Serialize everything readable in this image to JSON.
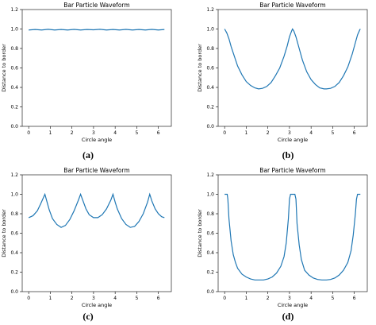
{
  "figure": {
    "captions": [
      "(a)",
      "(b)",
      "(c)",
      "(d)"
    ]
  },
  "chart_data": [
    {
      "type": "line",
      "title": "Bar Particle Waveform",
      "xlabel": "Circle angle",
      "ylabel": "Distance to border",
      "xlim": [
        -0.3,
        6.6
      ],
      "ylim": [
        0,
        1.2
      ],
      "xticks": [
        0,
        1,
        2,
        3,
        4,
        5,
        6
      ],
      "yticks": [
        0.0,
        0.2,
        0.4,
        0.6,
        0.8,
        1.0,
        1.2
      ],
      "ytick_labels": [
        "0.0",
        "0.2",
        "0.4",
        "0.6",
        "0.8",
        "1.0",
        "1.2"
      ],
      "grid": false,
      "color": "#1f77b4",
      "series": [
        {
          "x": [
            0.0,
            0.3,
            0.6,
            0.9,
            1.2,
            1.5,
            1.8,
            2.1,
            2.4,
            2.7,
            3.0,
            3.3,
            3.6,
            3.9,
            4.2,
            4.5,
            4.8,
            5.1,
            5.4,
            5.7,
            6.0,
            6.28
          ],
          "y": [
            0.99,
            0.995,
            0.99,
            0.997,
            0.99,
            0.995,
            0.99,
            0.996,
            0.99,
            0.995,
            0.992,
            0.997,
            0.99,
            0.995,
            0.99,
            0.996,
            0.99,
            0.995,
            0.99,
            0.996,
            0.99,
            0.995
          ]
        }
      ]
    },
    {
      "type": "line",
      "title": "Bar Particle Waveform",
      "xlabel": "Circle angle",
      "ylabel": "Distance to border",
      "xlim": [
        -0.3,
        6.6
      ],
      "ylim": [
        0,
        1.2
      ],
      "xticks": [
        0,
        1,
        2,
        3,
        4,
        5,
        6
      ],
      "yticks": [
        0.0,
        0.2,
        0.4,
        0.6,
        0.8,
        1.0,
        1.2
      ],
      "ytick_labels": [
        "0.0",
        "0.2",
        "0.4",
        "0.6",
        "0.8",
        "1.0",
        "1.2"
      ],
      "grid": false,
      "color": "#1f77b4",
      "series": [
        {
          "x": [
            0.0,
            0.1,
            0.2,
            0.3,
            0.45,
            0.6,
            0.8,
            1.0,
            1.2,
            1.4,
            1.57,
            1.75,
            1.95,
            2.15,
            2.35,
            2.55,
            2.75,
            2.9,
            3.0,
            3.1,
            3.14,
            3.2,
            3.3,
            3.45,
            3.6,
            3.8,
            4.0,
            4.2,
            4.4,
            4.6,
            4.71,
            4.9,
            5.1,
            5.3,
            5.5,
            5.7,
            5.9,
            6.05,
            6.15,
            6.25,
            6.28
          ],
          "y": [
            1.0,
            0.96,
            0.9,
            0.82,
            0.72,
            0.62,
            0.53,
            0.46,
            0.42,
            0.395,
            0.385,
            0.39,
            0.41,
            0.45,
            0.52,
            0.6,
            0.72,
            0.83,
            0.92,
            0.98,
            1.0,
            0.98,
            0.92,
            0.8,
            0.68,
            0.56,
            0.48,
            0.43,
            0.395,
            0.385,
            0.385,
            0.39,
            0.41,
            0.45,
            0.52,
            0.61,
            0.74,
            0.86,
            0.94,
            0.99,
            1.0
          ]
        }
      ]
    },
    {
      "type": "line",
      "title": "Bar Particle Waveform",
      "xlabel": "Circle angle",
      "ylabel": "Distance to border",
      "xlim": [
        -0.3,
        6.6
      ],
      "ylim": [
        0,
        1.2
      ],
      "xticks": [
        0,
        1,
        2,
        3,
        4,
        5,
        6
      ],
      "yticks": [
        0.0,
        0.2,
        0.4,
        0.6,
        0.8,
        1.0,
        1.2
      ],
      "ytick_labels": [
        "0.0",
        "0.2",
        "0.4",
        "0.6",
        "0.8",
        "1.0",
        "1.2"
      ],
      "grid": false,
      "color": "#1f77b4",
      "series": [
        {
          "x": [
            0.0,
            0.2,
            0.4,
            0.55,
            0.65,
            0.75,
            0.85,
            0.95,
            1.1,
            1.3,
            1.5,
            1.7,
            1.9,
            2.1,
            2.3,
            2.4,
            2.5,
            2.65,
            2.8,
            3.0,
            3.2,
            3.4,
            3.6,
            3.8,
            3.9,
            4.0,
            4.1,
            4.3,
            4.5,
            4.7,
            4.9,
            5.1,
            5.3,
            5.5,
            5.6,
            5.7,
            5.85,
            6.0,
            6.15,
            6.28
          ],
          "y": [
            0.76,
            0.78,
            0.83,
            0.9,
            0.95,
            1.0,
            0.92,
            0.84,
            0.75,
            0.69,
            0.66,
            0.68,
            0.74,
            0.83,
            0.94,
            1.0,
            0.94,
            0.85,
            0.79,
            0.76,
            0.76,
            0.79,
            0.85,
            0.94,
            1.0,
            0.92,
            0.85,
            0.75,
            0.69,
            0.66,
            0.67,
            0.72,
            0.8,
            0.92,
            1.0,
            0.93,
            0.85,
            0.8,
            0.77,
            0.76
          ]
        }
      ]
    },
    {
      "type": "line",
      "title": "Bar Particle Waveform",
      "xlabel": "Circle angle",
      "ylabel": "Distance to border",
      "xlim": [
        -0.3,
        6.6
      ],
      "ylim": [
        0,
        1.2
      ],
      "xticks": [
        0,
        1,
        2,
        3,
        4,
        5,
        6
      ],
      "yticks": [
        0.0,
        0.2,
        0.4,
        0.6,
        0.8,
        1.0,
        1.2
      ],
      "ytick_labels": [
        "0.0",
        "0.2",
        "0.4",
        "0.6",
        "0.8",
        "1.0",
        "1.2"
      ],
      "grid": false,
      "color": "#1f77b4",
      "series": [
        {
          "x": [
            0.0,
            0.12,
            0.15,
            0.2,
            0.3,
            0.4,
            0.5,
            0.6,
            0.8,
            1.0,
            1.2,
            1.4,
            1.57,
            1.8,
            2.0,
            2.2,
            2.4,
            2.6,
            2.75,
            2.85,
            2.95,
            3.0,
            3.05,
            3.25,
            3.3,
            3.35,
            3.45,
            3.55,
            3.7,
            3.9,
            4.1,
            4.3,
            4.5,
            4.71,
            4.9,
            5.1,
            5.3,
            5.5,
            5.7,
            5.85,
            5.95,
            6.05,
            6.1,
            6.15,
            6.28
          ],
          "y": [
            1.0,
            1.0,
            0.95,
            0.75,
            0.52,
            0.38,
            0.3,
            0.24,
            0.18,
            0.15,
            0.13,
            0.12,
            0.12,
            0.12,
            0.13,
            0.15,
            0.19,
            0.26,
            0.36,
            0.5,
            0.75,
            0.95,
            1.0,
            1.0,
            0.95,
            0.7,
            0.48,
            0.33,
            0.22,
            0.17,
            0.14,
            0.125,
            0.12,
            0.12,
            0.125,
            0.14,
            0.17,
            0.22,
            0.3,
            0.42,
            0.58,
            0.8,
            0.95,
            1.0,
            1.0
          ]
        }
      ]
    }
  ]
}
